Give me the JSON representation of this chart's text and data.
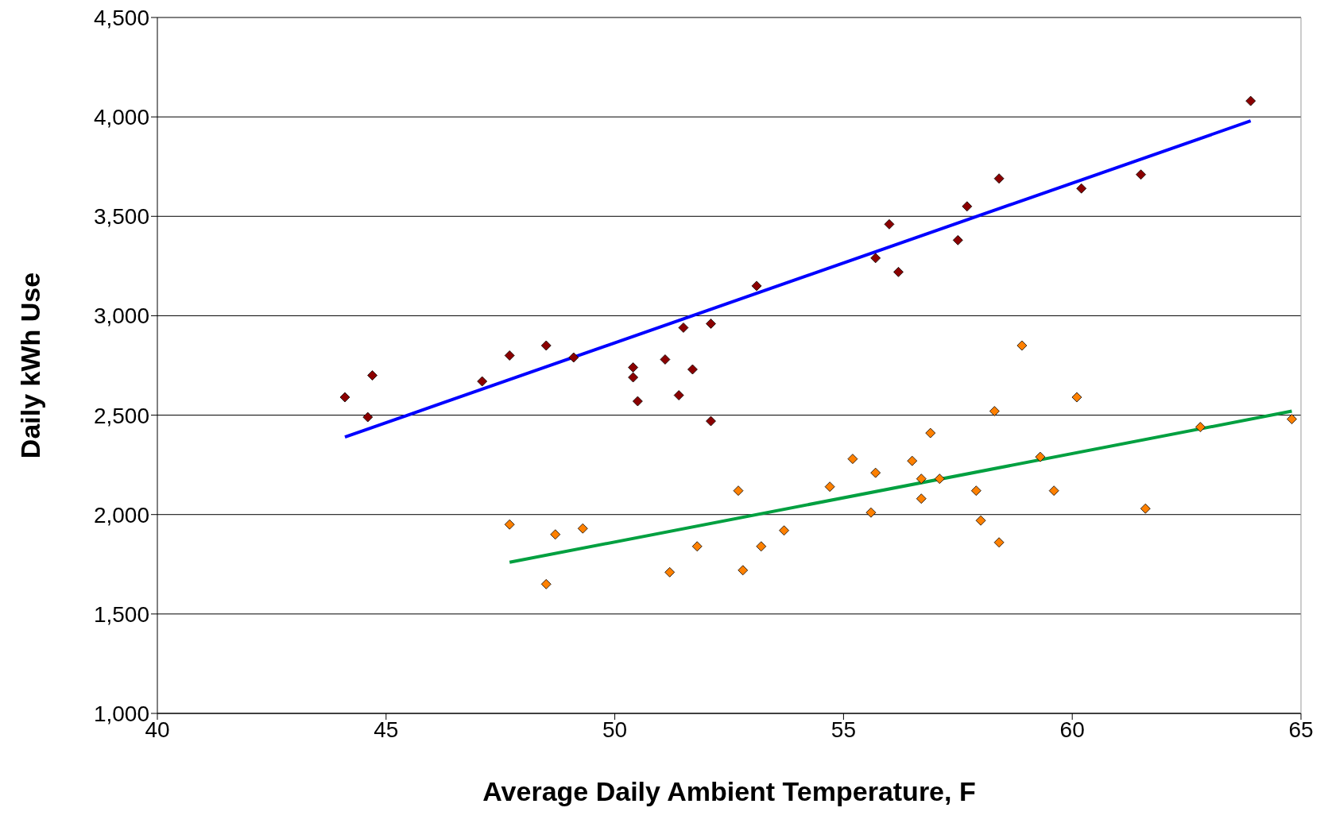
{
  "chart_data": {
    "type": "scatter",
    "xlabel": "Average Daily Ambient Temperature, F",
    "ylabel": "Daily kWh Use",
    "xlim": [
      40,
      65
    ],
    "xticks": [
      40,
      45,
      50,
      55,
      60,
      65
    ],
    "ylim": [
      1000,
      4500
    ],
    "yticks": [
      {
        "value": 1000,
        "label": "1,000"
      },
      {
        "value": 1500,
        "label": "1,500"
      },
      {
        "value": 2000,
        "label": "2,000"
      },
      {
        "value": 2500,
        "label": "2,500"
      },
      {
        "value": 3000,
        "label": "3,000"
      },
      {
        "value": 3500,
        "label": "3,500"
      },
      {
        "value": 4000,
        "label": "4,000"
      },
      {
        "value": 4500,
        "label": "4,500"
      }
    ],
    "grid": "y",
    "marker": "diamond",
    "series": [
      {
        "color": "#8b0000",
        "x": [
          44.1,
          44.7,
          44.6,
          47.1,
          47.7,
          48.5,
          49.1,
          50.4,
          50.4,
          50.5,
          51.1,
          51.4,
          51.5,
          51.7,
          52.1,
          52.1,
          53.1,
          55.7,
          56.0,
          56.2,
          57.5,
          57.7,
          58.4,
          60.2,
          61.5,
          63.9
        ],
        "values": [
          2590,
          2700,
          2490,
          2670,
          2800,
          2850,
          2790,
          2740,
          2690,
          2570,
          2780,
          2600,
          2940,
          2730,
          2960,
          2470,
          3150,
          3290,
          3460,
          3220,
          3380,
          3550,
          3690,
          3640,
          3710,
          4080
        ]
      },
      {
        "color": "#ff8000",
        "x": [
          47.7,
          48.5,
          48.7,
          49.3,
          51.2,
          51.8,
          52.7,
          52.8,
          53.2,
          53.7,
          54.7,
          55.2,
          55.6,
          55.7,
          56.5,
          56.7,
          56.7,
          56.9,
          57.1,
          57.9,
          58.0,
          58.3,
          58.4,
          58.9,
          59.3,
          59.6,
          60.1,
          61.6,
          62.8,
          64.8
        ],
        "values": [
          1950,
          1650,
          1900,
          1930,
          1710,
          1840,
          2120,
          1720,
          1840,
          1920,
          2140,
          2280,
          2010,
          2210,
          2270,
          2180,
          2080,
          2410,
          2180,
          2120,
          1970,
          2520,
          1860,
          2850,
          2290,
          2120,
          2590,
          2030,
          2440,
          2480
        ]
      },
      {
        "type": "line",
        "color": "#0000ff",
        "marker": "none",
        "x": [
          44.1,
          63.9
        ],
        "values": [
          2390,
          3980
        ]
      },
      {
        "type": "line",
        "color": "#00a040",
        "marker": "none",
        "x": [
          47.7,
          64.8
        ],
        "values": [
          1760,
          2520
        ]
      }
    ]
  }
}
